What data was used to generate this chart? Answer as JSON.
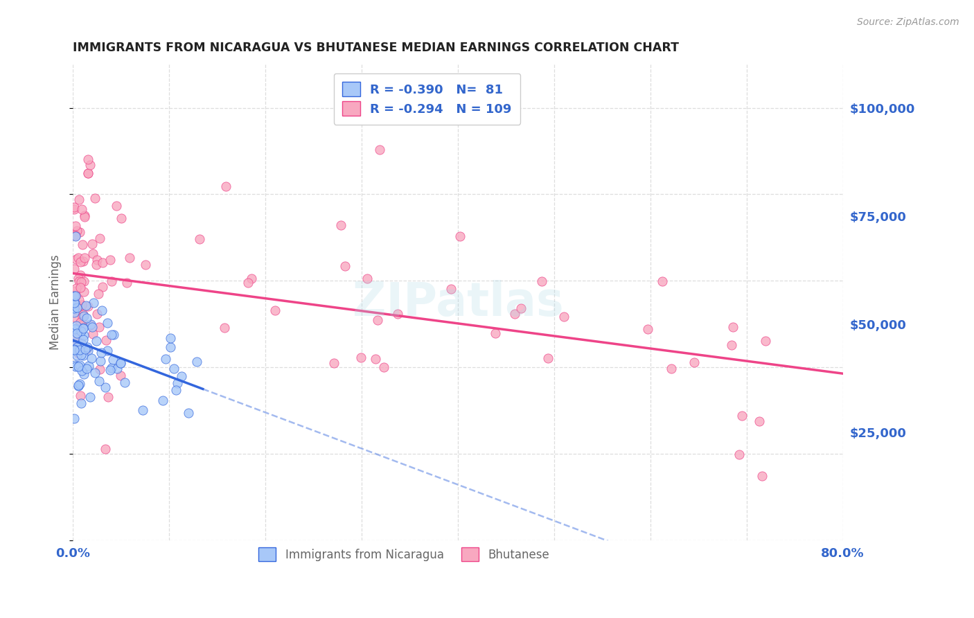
{
  "title": "IMMIGRANTS FROM NICARAGUA VS BHUTANESE MEDIAN EARNINGS CORRELATION CHART",
  "source": "Source: ZipAtlas.com",
  "ylabel": "Median Earnings",
  "y_ticks": [
    25000,
    50000,
    75000,
    100000
  ],
  "y_tick_labels": [
    "$25,000",
    "$50,000",
    "$75,000",
    "$100,000"
  ],
  "legend_labels": [
    "Immigrants from Nicaragua",
    "Bhutanese"
  ],
  "r_nicaragua": -0.39,
  "n_nicaragua": 81,
  "r_bhutanese": -0.294,
  "n_bhutanese": 109,
  "color_nicaragua": "#a8c8f8",
  "color_bhutanese": "#f8a8c0",
  "color_line_nicaragua": "#3366dd",
  "color_line_bhutanese": "#ee4488",
  "color_axis_labels": "#3366cc",
  "watermark": "ZIPatlas",
  "background_color": "#ffffff",
  "xmin": 0.0,
  "xmax": 0.8,
  "ymin": 0,
  "ymax": 110000
}
